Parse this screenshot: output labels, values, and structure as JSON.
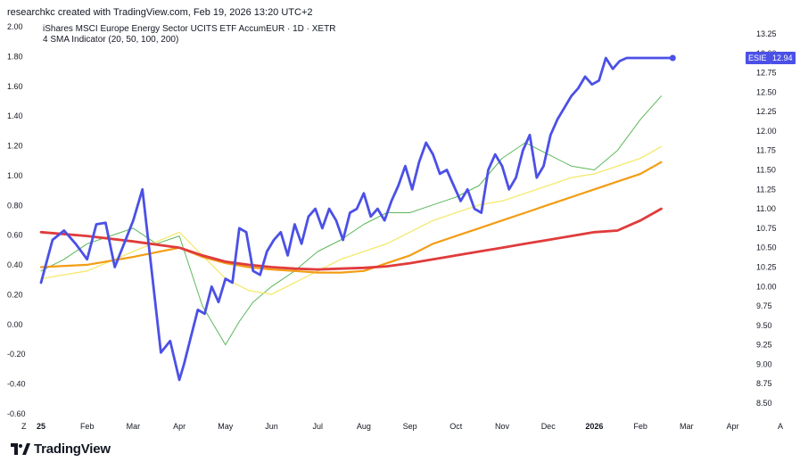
{
  "caption": "researchkc created with TradingView.com, Feb 19, 2026 13:20 UTC+2",
  "header": {
    "title": "iShares MSCI Europe Energy Sector UCITS ETF AccumEUR · 1D · XETR",
    "indicator": "4 SMA Indicator (20, 50, 100, 200)"
  },
  "brand": {
    "name": "TradingView"
  },
  "colors": {
    "price": "#4b50e6",
    "sma20": "#5cb85c",
    "sma50": "#f5e96b",
    "sma100": "#f39c12",
    "sma200": "#e03b3b",
    "badge": "#4b50e6"
  },
  "chart_data": {
    "type": "line",
    "price_badge": {
      "symbol": "ESIE",
      "value": "12.94"
    },
    "left_axis": {
      "ticks": [
        "2.00",
        "1.80",
        "1.60",
        "1.40",
        "1.20",
        "1.00",
        "0.80",
        "0.60",
        "0.40",
        "0.20",
        "0.00",
        "-0.20",
        "-0.40",
        "-0.60"
      ],
      "range": [
        -0.6,
        2.0
      ]
    },
    "right_axis": {
      "ticks": [
        "13.25",
        "13.00",
        "12.75",
        "12.50",
        "12.25",
        "12.00",
        "11.75",
        "11.50",
        "11.25",
        "11.00",
        "10.75",
        "10.50",
        "10.25",
        "10.00",
        "9.75",
        "9.50",
        "9.25",
        "9.00",
        "8.75",
        "8.50"
      ],
      "range": [
        8.5,
        13.25
      ]
    },
    "x_axis": {
      "ticks": [
        {
          "label": "25",
          "bold": true
        },
        {
          "label": "Feb",
          "bold": false
        },
        {
          "label": "Mar",
          "bold": false
        },
        {
          "label": "Apr",
          "bold": false
        },
        {
          "label": "May",
          "bold": false
        },
        {
          "label": "Jun",
          "bold": false
        },
        {
          "label": "Jul",
          "bold": false
        },
        {
          "label": "Aug",
          "bold": false
        },
        {
          "label": "Sep",
          "bold": false
        },
        {
          "label": "Oct",
          "bold": false
        },
        {
          "label": "Nov",
          "bold": false
        },
        {
          "label": "Dec",
          "bold": false
        },
        {
          "label": "2026",
          "bold": true
        },
        {
          "label": "Feb",
          "bold": false
        },
        {
          "label": "Mar",
          "bold": false
        },
        {
          "label": "Apr",
          "bold": false
        }
      ],
      "corner_label": "A",
      "corner_left_label": "Z"
    },
    "series": [
      {
        "key": "price",
        "x": [
          0.0,
          0.25,
          0.5,
          0.75,
          1.0,
          1.2,
          1.4,
          1.6,
          1.8,
          2.0,
          2.2,
          2.4,
          2.6,
          2.8,
          3.0,
          3.1,
          3.25,
          3.4,
          3.55,
          3.7,
          3.85,
          4.0,
          4.15,
          4.3,
          4.45,
          4.6,
          4.75,
          4.9,
          5.05,
          5.2,
          5.35,
          5.5,
          5.65,
          5.8,
          5.95,
          6.1,
          6.25,
          6.4,
          6.55,
          6.7,
          6.85,
          7.0,
          7.15,
          7.3,
          7.45,
          7.6,
          7.75,
          7.9,
          8.05,
          8.2,
          8.35,
          8.5,
          8.65,
          8.8,
          8.95,
          9.1,
          9.25,
          9.4,
          9.55,
          9.7,
          9.85,
          10.0,
          10.15,
          10.3,
          10.45,
          10.6,
          10.75,
          10.9,
          11.05,
          11.2,
          11.35,
          11.5,
          11.65,
          11.8,
          11.95,
          12.1,
          12.25,
          12.4,
          12.55,
          12.7,
          12.85,
          13.0,
          13.15,
          13.3,
          13.45,
          13.55,
          13.7
        ],
        "y": [
          10.05,
          10.6,
          10.72,
          10.55,
          10.35,
          10.8,
          10.82,
          10.25,
          10.55,
          10.85,
          11.25,
          10.2,
          9.15,
          9.3,
          8.8,
          9.0,
          9.35,
          9.7,
          9.65,
          10.0,
          9.8,
          10.1,
          10.05,
          10.75,
          10.7,
          10.2,
          10.15,
          10.45,
          10.6,
          10.7,
          10.4,
          10.8,
          10.55,
          10.9,
          11.0,
          10.75,
          11.0,
          10.85,
          10.6,
          10.95,
          11.0,
          11.2,
          10.9,
          11.0,
          10.85,
          11.1,
          11.3,
          11.55,
          11.25,
          11.6,
          11.85,
          11.7,
          11.45,
          11.5,
          11.3,
          11.1,
          11.25,
          11.0,
          10.95,
          11.5,
          11.7,
          11.55,
          11.25,
          11.4,
          11.75,
          11.95,
          11.4,
          11.55,
          11.95,
          12.15,
          12.3,
          12.45,
          12.55,
          12.7,
          12.6,
          12.65,
          12.94,
          12.8,
          12.9,
          12.94,
          12.94,
          12.94,
          12.94,
          12.94,
          12.94,
          12.94,
          12.94
        ]
      },
      {
        "key": "sma20",
        "x": [
          0.0,
          0.5,
          1.0,
          1.5,
          2.0,
          2.5,
          3.0,
          3.5,
          4.0,
          4.3,
          4.6,
          5.0,
          5.5,
          6.0,
          6.5,
          7.0,
          7.5,
          8.0,
          8.5,
          9.0,
          9.5,
          10.0,
          10.5,
          11.0,
          11.5,
          12.0,
          12.5,
          13.0,
          13.45
        ],
        "y": [
          10.2,
          10.35,
          10.55,
          10.65,
          10.75,
          10.55,
          10.65,
          9.75,
          9.25,
          9.55,
          9.8,
          10.0,
          10.2,
          10.45,
          10.6,
          10.8,
          10.95,
          10.95,
          11.05,
          11.15,
          11.3,
          11.65,
          11.85,
          11.7,
          11.55,
          11.5,
          11.75,
          12.15,
          12.45
        ]
      },
      {
        "key": "sma50",
        "x": [
          0.0,
          1.0,
          2.0,
          3.0,
          3.5,
          4.0,
          4.5,
          5.0,
          5.5,
          6.0,
          6.5,
          7.0,
          7.5,
          8.0,
          8.5,
          9.0,
          9.5,
          10.0,
          10.5,
          11.0,
          11.5,
          12.0,
          12.5,
          13.0,
          13.45
        ],
        "y": [
          10.1,
          10.2,
          10.45,
          10.7,
          10.4,
          10.1,
          9.95,
          9.9,
          10.05,
          10.2,
          10.35,
          10.45,
          10.55,
          10.7,
          10.85,
          10.95,
          11.05,
          11.1,
          11.2,
          11.3,
          11.4,
          11.45,
          11.55,
          11.65,
          11.8
        ]
      },
      {
        "key": "sma100",
        "x": [
          0.0,
          1.0,
          2.0,
          3.0,
          3.5,
          4.0,
          4.5,
          5.0,
          5.5,
          6.0,
          6.5,
          7.0,
          7.5,
          8.0,
          8.5,
          9.0,
          9.5,
          10.0,
          10.5,
          11.0,
          11.5,
          12.0,
          12.5,
          13.0,
          13.45
        ],
        "y": [
          10.25,
          10.28,
          10.38,
          10.5,
          10.38,
          10.3,
          10.25,
          10.22,
          10.2,
          10.18,
          10.18,
          10.2,
          10.3,
          10.4,
          10.55,
          10.65,
          10.75,
          10.85,
          10.95,
          11.05,
          11.15,
          11.25,
          11.35,
          11.45,
          11.6
        ]
      },
      {
        "key": "sma200",
        "x": [
          0.0,
          1.0,
          2.0,
          3.0,
          3.5,
          4.0,
          4.5,
          5.0,
          5.5,
          6.0,
          6.5,
          7.0,
          7.5,
          8.0,
          8.5,
          9.0,
          9.5,
          10.0,
          10.5,
          11.0,
          11.5,
          12.0,
          12.5,
          13.0,
          13.45
        ],
        "y": [
          10.7,
          10.65,
          10.58,
          10.5,
          10.4,
          10.32,
          10.28,
          10.25,
          10.23,
          10.22,
          10.23,
          10.24,
          10.26,
          10.3,
          10.35,
          10.4,
          10.45,
          10.5,
          10.55,
          10.6,
          10.65,
          10.7,
          10.72,
          10.85,
          11.0
        ]
      }
    ]
  }
}
